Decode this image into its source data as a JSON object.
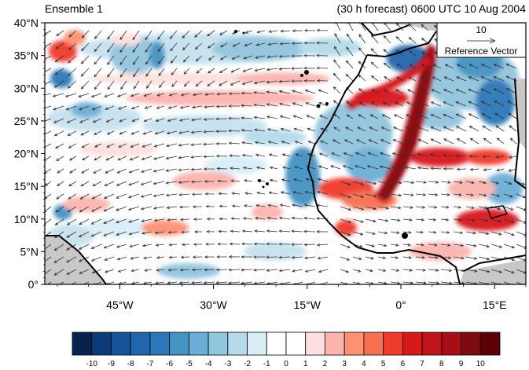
{
  "header": {
    "left_title": "Ensemble 1",
    "right_title": "(30 h forecast) 0600 UTC 10 Aug 2004"
  },
  "map": {
    "lon_range": [
      -57,
      20
    ],
    "lat_range": [
      0,
      40
    ],
    "lat_ticks": [
      {
        "value": 0,
        "label": "0°"
      },
      {
        "value": 5,
        "label": "5°N"
      },
      {
        "value": 10,
        "label": "10°N"
      },
      {
        "value": 15,
        "label": "15°N"
      },
      {
        "value": 20,
        "label": "20°N"
      },
      {
        "value": 25,
        "label": "25°N"
      },
      {
        "value": 30,
        "label": "30°N"
      },
      {
        "value": 35,
        "label": "35°N"
      },
      {
        "value": 40,
        "label": "40°N"
      }
    ],
    "lon_ticks": [
      {
        "value": -45,
        "label": "45°W"
      },
      {
        "value": -30,
        "label": "30°W"
      },
      {
        "value": -15,
        "label": "15°W"
      },
      {
        "value": 0,
        "label": "0°"
      },
      {
        "value": 15,
        "label": "15°E"
      }
    ],
    "colors": {
      "land_missing": "#c8c8c8",
      "coast": "#000000",
      "vector": "#333333"
    }
  },
  "reference_vector": {
    "magnitude": "10",
    "label": "Reference Vector"
  },
  "colorbar": {
    "labels": [
      "-10",
      "-9",
      "-8",
      "-7",
      "-6",
      "-5",
      "-4",
      "-3",
      "-2",
      "-1",
      "0",
      "1",
      "2",
      "3",
      "4",
      "5",
      "6",
      "7",
      "8",
      "9",
      "10"
    ],
    "colors": [
      "#08224e",
      "#0b3a78",
      "#15549a",
      "#2166ac",
      "#2b78b8",
      "#4393c3",
      "#6aaed6",
      "#92c5de",
      "#b4dbe9",
      "#d8eef6",
      "#ffffff",
      "#ffffff",
      "#fde0dd",
      "#fbb4ae",
      "#fc9272",
      "#f7704f",
      "#ef3b2c",
      "#d7191c",
      "#c0131a",
      "#a50f15",
      "#7f0a0f",
      "#5c0006"
    ]
  }
}
